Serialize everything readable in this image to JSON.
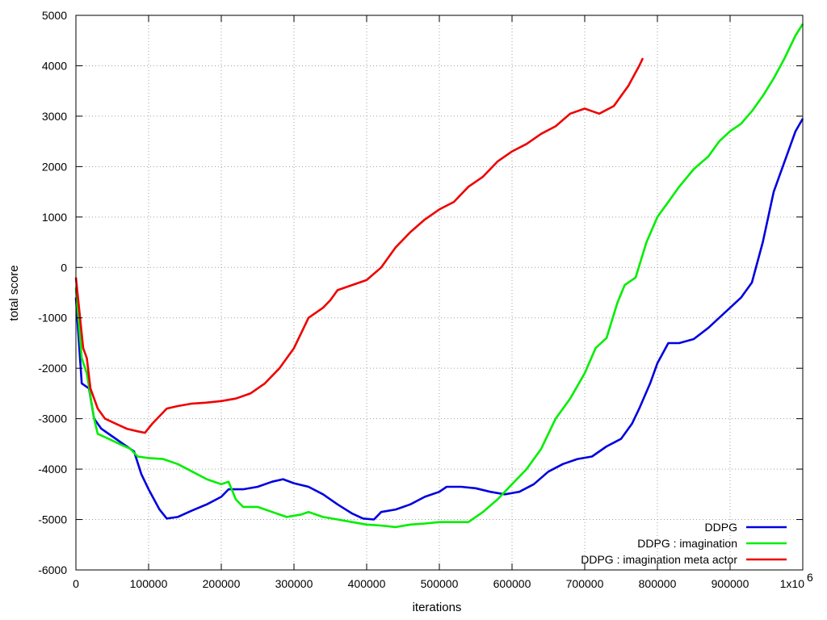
{
  "chart_data": {
    "type": "line",
    "title": "",
    "xlabel": "iterations",
    "ylabel": "total score",
    "xlim": [
      0,
      1000000
    ],
    "ylim": [
      -6000,
      5000
    ],
    "x_ticks": [
      0,
      100000,
      200000,
      300000,
      400000,
      500000,
      600000,
      700000,
      800000,
      900000,
      1000000
    ],
    "x_tick_labels": [
      "0",
      "100000",
      "200000",
      "300000",
      "400000",
      "500000",
      "600000",
      "700000",
      "800000",
      "900000",
      "1x10"
    ],
    "x_tick_exponent": "6",
    "y_ticks": [
      -6000,
      -5000,
      -4000,
      -3000,
      -2000,
      -1000,
      0,
      1000,
      2000,
      3000,
      4000,
      5000
    ],
    "y_tick_labels": [
      "-6000",
      "-5000",
      "-4000",
      "-3000",
      "-2000",
      "-1000",
      "0",
      "1000",
      "2000",
      "3000",
      "4000",
      "5000"
    ],
    "grid": true,
    "legend_position": "bottom-right",
    "series": [
      {
        "name": "DDPG",
        "color": "#0000e0",
        "points": [
          [
            0,
            -600
          ],
          [
            8000,
            -2300
          ],
          [
            18000,
            -2400
          ],
          [
            25000,
            -3000
          ],
          [
            35000,
            -3200
          ],
          [
            50000,
            -3350
          ],
          [
            65000,
            -3500
          ],
          [
            80000,
            -3650
          ],
          [
            90000,
            -4100
          ],
          [
            100000,
            -4400
          ],
          [
            115000,
            -4800
          ],
          [
            125000,
            -4980
          ],
          [
            140000,
            -4950
          ],
          [
            160000,
            -4820
          ],
          [
            180000,
            -4700
          ],
          [
            200000,
            -4550
          ],
          [
            210000,
            -4400
          ],
          [
            230000,
            -4400
          ],
          [
            250000,
            -4350
          ],
          [
            270000,
            -4250
          ],
          [
            285000,
            -4200
          ],
          [
            300000,
            -4280
          ],
          [
            320000,
            -4350
          ],
          [
            340000,
            -4500
          ],
          [
            360000,
            -4700
          ],
          [
            380000,
            -4880
          ],
          [
            395000,
            -4980
          ],
          [
            410000,
            -5000
          ],
          [
            420000,
            -4850
          ],
          [
            440000,
            -4800
          ],
          [
            460000,
            -4700
          ],
          [
            480000,
            -4550
          ],
          [
            500000,
            -4450
          ],
          [
            510000,
            -4350
          ],
          [
            530000,
            -4350
          ],
          [
            550000,
            -4380
          ],
          [
            570000,
            -4450
          ],
          [
            590000,
            -4500
          ],
          [
            610000,
            -4450
          ],
          [
            630000,
            -4300
          ],
          [
            650000,
            -4050
          ],
          [
            670000,
            -3900
          ],
          [
            690000,
            -3800
          ],
          [
            710000,
            -3750
          ],
          [
            730000,
            -3550
          ],
          [
            750000,
            -3400
          ],
          [
            765000,
            -3100
          ],
          [
            775000,
            -2800
          ],
          [
            790000,
            -2300
          ],
          [
            800000,
            -1900
          ],
          [
            815000,
            -1500
          ],
          [
            830000,
            -1500
          ],
          [
            850000,
            -1420
          ],
          [
            870000,
            -1200
          ],
          [
            885000,
            -1000
          ],
          [
            900000,
            -800
          ],
          [
            915000,
            -600
          ],
          [
            930000,
            -300
          ],
          [
            945000,
            500
          ],
          [
            960000,
            1500
          ],
          [
            975000,
            2100
          ],
          [
            990000,
            2700
          ],
          [
            1000000,
            2950
          ]
        ]
      },
      {
        "name": "DDPG : imagination",
        "color": "#00ee00",
        "points": [
          [
            0,
            -400
          ],
          [
            8000,
            -1800
          ],
          [
            15000,
            -2100
          ],
          [
            25000,
            -3000
          ],
          [
            30000,
            -3300
          ],
          [
            45000,
            -3400
          ],
          [
            60000,
            -3500
          ],
          [
            75000,
            -3600
          ],
          [
            85000,
            -3750
          ],
          [
            100000,
            -3780
          ],
          [
            120000,
            -3800
          ],
          [
            140000,
            -3900
          ],
          [
            160000,
            -4050
          ],
          [
            180000,
            -4200
          ],
          [
            200000,
            -4300
          ],
          [
            210000,
            -4250
          ],
          [
            220000,
            -4600
          ],
          [
            230000,
            -4750
          ],
          [
            250000,
            -4750
          ],
          [
            270000,
            -4850
          ],
          [
            290000,
            -4950
          ],
          [
            310000,
            -4900
          ],
          [
            320000,
            -4850
          ],
          [
            340000,
            -4950
          ],
          [
            360000,
            -5000
          ],
          [
            380000,
            -5050
          ],
          [
            400000,
            -5100
          ],
          [
            420000,
            -5120
          ],
          [
            440000,
            -5150
          ],
          [
            460000,
            -5100
          ],
          [
            480000,
            -5080
          ],
          [
            500000,
            -5050
          ],
          [
            520000,
            -5050
          ],
          [
            540000,
            -5050
          ],
          [
            560000,
            -4850
          ],
          [
            580000,
            -4600
          ],
          [
            600000,
            -4300
          ],
          [
            620000,
            -4000
          ],
          [
            640000,
            -3600
          ],
          [
            660000,
            -3000
          ],
          [
            680000,
            -2600
          ],
          [
            700000,
            -2100
          ],
          [
            715000,
            -1600
          ],
          [
            730000,
            -1400
          ],
          [
            745000,
            -700
          ],
          [
            755000,
            -350
          ],
          [
            770000,
            -200
          ],
          [
            785000,
            500
          ],
          [
            800000,
            1000
          ],
          [
            815000,
            1300
          ],
          [
            830000,
            1600
          ],
          [
            850000,
            1950
          ],
          [
            870000,
            2200
          ],
          [
            885000,
            2500
          ],
          [
            900000,
            2700
          ],
          [
            915000,
            2850
          ],
          [
            930000,
            3100
          ],
          [
            945000,
            3400
          ],
          [
            960000,
            3750
          ],
          [
            975000,
            4150
          ],
          [
            990000,
            4600
          ],
          [
            1000000,
            4830
          ]
        ]
      },
      {
        "name": "DDPG : imagination meta actor",
        "color": "#ee0000",
        "points": [
          [
            0,
            -200
          ],
          [
            5000,
            -900
          ],
          [
            10000,
            -1600
          ],
          [
            15000,
            -1800
          ],
          [
            20000,
            -2400
          ],
          [
            30000,
            -2800
          ],
          [
            40000,
            -3000
          ],
          [
            55000,
            -3100
          ],
          [
            70000,
            -3200
          ],
          [
            85000,
            -3250
          ],
          [
            95000,
            -3280
          ],
          [
            105000,
            -3100
          ],
          [
            115000,
            -2950
          ],
          [
            125000,
            -2800
          ],
          [
            140000,
            -2750
          ],
          [
            160000,
            -2700
          ],
          [
            180000,
            -2680
          ],
          [
            200000,
            -2650
          ],
          [
            220000,
            -2600
          ],
          [
            240000,
            -2500
          ],
          [
            260000,
            -2300
          ],
          [
            280000,
            -2000
          ],
          [
            300000,
            -1600
          ],
          [
            320000,
            -1000
          ],
          [
            340000,
            -800
          ],
          [
            350000,
            -650
          ],
          [
            360000,
            -450
          ],
          [
            380000,
            -350
          ],
          [
            400000,
            -250
          ],
          [
            420000,
            0
          ],
          [
            440000,
            400
          ],
          [
            460000,
            700
          ],
          [
            480000,
            950
          ],
          [
            500000,
            1150
          ],
          [
            520000,
            1300
          ],
          [
            540000,
            1600
          ],
          [
            560000,
            1800
          ],
          [
            580000,
            2100
          ],
          [
            600000,
            2300
          ],
          [
            620000,
            2450
          ],
          [
            640000,
            2650
          ],
          [
            660000,
            2800
          ],
          [
            680000,
            3050
          ],
          [
            700000,
            3150
          ],
          [
            710000,
            3100
          ],
          [
            720000,
            3050
          ],
          [
            740000,
            3200
          ],
          [
            760000,
            3600
          ],
          [
            775000,
            4000
          ],
          [
            780000,
            4150
          ]
        ]
      }
    ]
  }
}
